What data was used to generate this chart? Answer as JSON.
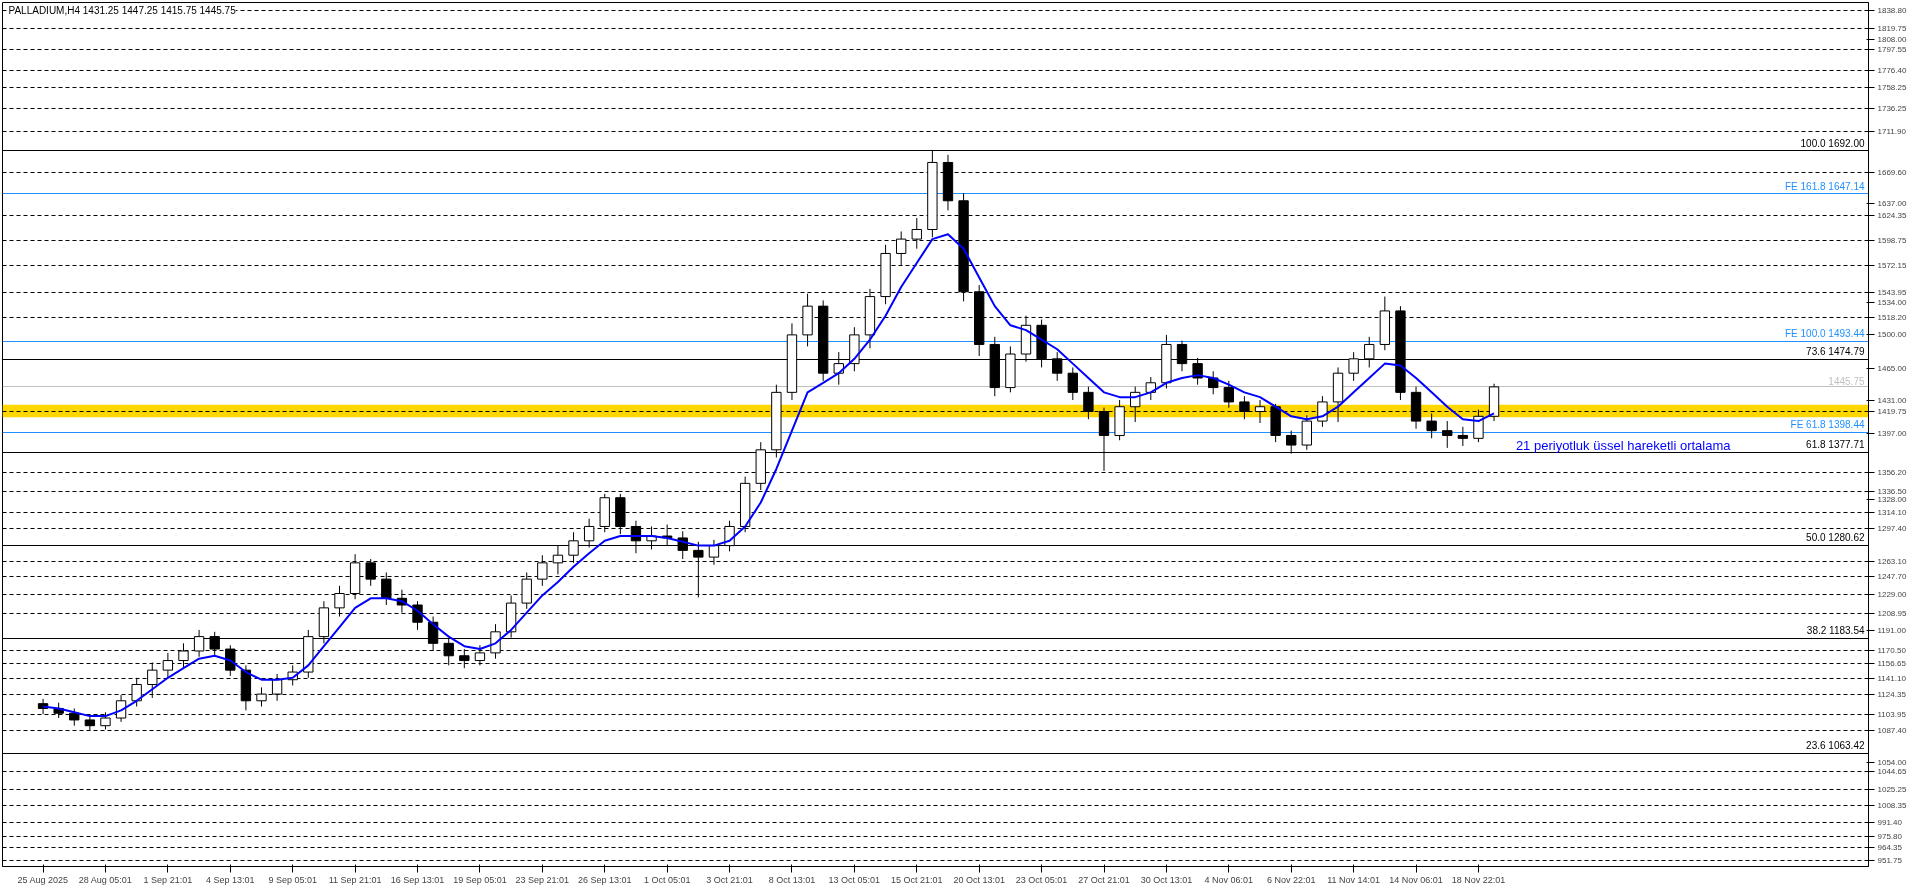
{
  "chart_data": {
    "type": "candlestick",
    "title": "PALLADIUM,H4 1431.25 1447.25 1415.75 1445.75",
    "categories": [
      "25 Aug 2025",
      null,
      null,
      null,
      "28 Aug 05:01",
      null,
      null,
      null,
      "1 Sep 21:01",
      null,
      null,
      null,
      "4 Sep 13:01",
      null,
      null,
      null,
      "9 Sep 05:01",
      null,
      null,
      null,
      "11 Sep 21:01",
      null,
      null,
      null,
      "16 Sep 13:01",
      null,
      null,
      null,
      "19 Sep 05:01",
      null,
      null,
      null,
      "23 Sep 21:01",
      null,
      null,
      null,
      "26 Sep 13:01",
      null,
      null,
      null,
      "1 Oct 05:01",
      null,
      null,
      null,
      "3 Oct 21:01",
      null,
      null,
      null,
      "8 Oct 13:01",
      null,
      null,
      null,
      "13 Oct 05:01",
      null,
      null,
      null,
      "15 Oct 21:01",
      null,
      null,
      null,
      "20 Oct 13:01",
      null,
      null,
      null,
      "23 Oct 05:01",
      null,
      null,
      null,
      "27 Oct 21:01",
      null,
      null,
      null,
      "30 Oct 13:01",
      null,
      null,
      null,
      "4 Nov 06:01",
      null,
      null,
      null,
      "6 Nov 22:01",
      null,
      null,
      null,
      "11 Nov 14:01",
      null,
      null,
      null,
      "14 Nov 06:01",
      null,
      null,
      null,
      "18 Nov 22:01",
      null
    ],
    "color": "#000000",
    "ohlc": [
      [
        1115,
        1120,
        1104,
        1110
      ],
      [
        1110,
        1116,
        1100,
        1105
      ],
      [
        1105,
        1110,
        1092,
        1098
      ],
      [
        1098,
        1102,
        1087,
        1092
      ],
      [
        1092,
        1106,
        1088,
        1100
      ],
      [
        1100,
        1124,
        1096,
        1118
      ],
      [
        1118,
        1142,
        1112,
        1135
      ],
      [
        1135,
        1158,
        1121,
        1150
      ],
      [
        1150,
        1168,
        1142,
        1160
      ],
      [
        1160,
        1178,
        1152,
        1170
      ],
      [
        1170,
        1192,
        1164,
        1185
      ],
      [
        1185,
        1190,
        1165,
        1172
      ],
      [
        1172,
        1176,
        1144,
        1150
      ],
      [
        1150,
        1155,
        1108,
        1118
      ],
      [
        1118,
        1132,
        1112,
        1125
      ],
      [
        1125,
        1146,
        1118,
        1140
      ],
      [
        1140,
        1155,
        1134,
        1148
      ],
      [
        1148,
        1192,
        1142,
        1185
      ],
      [
        1185,
        1222,
        1178,
        1215
      ],
      [
        1215,
        1238,
        1206,
        1230
      ],
      [
        1230,
        1271,
        1224,
        1262
      ],
      [
        1262,
        1266,
        1238,
        1245
      ],
      [
        1245,
        1252,
        1218,
        1225
      ],
      [
        1225,
        1234,
        1210,
        1218
      ],
      [
        1218,
        1222,
        1192,
        1200
      ],
      [
        1200,
        1206,
        1170,
        1178
      ],
      [
        1178,
        1184,
        1155,
        1165
      ],
      [
        1165,
        1172,
        1152,
        1160
      ],
      [
        1160,
        1176,
        1155,
        1168
      ],
      [
        1168,
        1198,
        1162,
        1190
      ],
      [
        1190,
        1228,
        1184,
        1220
      ],
      [
        1220,
        1252,
        1214,
        1245
      ],
      [
        1245,
        1270,
        1238,
        1262
      ],
      [
        1262,
        1280,
        1250,
        1270
      ],
      [
        1270,
        1294,
        1262,
        1285
      ],
      [
        1285,
        1308,
        1278,
        1300
      ],
      [
        1300,
        1334,
        1294,
        1330
      ],
      [
        1330,
        1334,
        1292,
        1300
      ],
      [
        1300,
        1306,
        1272,
        1285
      ],
      [
        1285,
        1300,
        1276,
        1290
      ],
      [
        1290,
        1302,
        1280,
        1288
      ],
      [
        1288,
        1295,
        1266,
        1275
      ],
      [
        1275,
        1284,
        1226,
        1268
      ],
      [
        1268,
        1286,
        1260,
        1280
      ],
      [
        1280,
        1306,
        1274,
        1300
      ],
      [
        1300,
        1352,
        1294,
        1345
      ],
      [
        1345,
        1388,
        1338,
        1380
      ],
      [
        1380,
        1448,
        1372,
        1440
      ],
      [
        1440,
        1512,
        1432,
        1500
      ],
      [
        1500,
        1543,
        1488,
        1530
      ],
      [
        1530,
        1536,
        1452,
        1460
      ],
      [
        1460,
        1482,
        1448,
        1470
      ],
      [
        1470,
        1508,
        1462,
        1500
      ],
      [
        1500,
        1548,
        1486,
        1540
      ],
      [
        1540,
        1594,
        1532,
        1585
      ],
      [
        1585,
        1608,
        1572,
        1600
      ],
      [
        1600,
        1622,
        1590,
        1610
      ],
      [
        1610,
        1692,
        1602,
        1680
      ],
      [
        1680,
        1688,
        1630,
        1640
      ],
      [
        1640,
        1648,
        1535,
        1545
      ],
      [
        1545,
        1552,
        1478,
        1490
      ],
      [
        1490,
        1498,
        1436,
        1445
      ],
      [
        1445,
        1488,
        1440,
        1480
      ],
      [
        1480,
        1520,
        1472,
        1510
      ],
      [
        1510,
        1516,
        1466,
        1475
      ],
      [
        1475,
        1482,
        1452,
        1460
      ],
      [
        1460,
        1466,
        1432,
        1440
      ],
      [
        1440,
        1446,
        1412,
        1420
      ],
      [
        1420,
        1424,
        1358,
        1395
      ],
      [
        1395,
        1432,
        1390,
        1425
      ],
      [
        1425,
        1446,
        1409,
        1440
      ],
      [
        1440,
        1456,
        1432,
        1450
      ],
      [
        1450,
        1500,
        1444,
        1490
      ],
      [
        1490,
        1494,
        1462,
        1470
      ],
      [
        1470,
        1476,
        1448,
        1455
      ],
      [
        1455,
        1462,
        1438,
        1445
      ],
      [
        1445,
        1452,
        1424,
        1430
      ],
      [
        1430,
        1436,
        1412,
        1420
      ],
      [
        1420,
        1432,
        1408,
        1425
      ],
      [
        1425,
        1428,
        1388,
        1395
      ],
      [
        1395,
        1400,
        1376,
        1385
      ],
      [
        1385,
        1416,
        1380,
        1410
      ],
      [
        1410,
        1436,
        1404,
        1430
      ],
      [
        1430,
        1466,
        1409,
        1460
      ],
      [
        1460,
        1482,
        1452,
        1475
      ],
      [
        1475,
        1498,
        1466,
        1490
      ],
      [
        1490,
        1540,
        1484,
        1525
      ],
      [
        1525,
        1530,
        1432,
        1440
      ],
      [
        1440,
        1446,
        1402,
        1410
      ],
      [
        1410,
        1418,
        1392,
        1400
      ],
      [
        1400,
        1410,
        1382,
        1395
      ],
      [
        1395,
        1404,
        1384,
        1392
      ],
      [
        1392,
        1422,
        1388,
        1415
      ],
      [
        1415,
        1449,
        1410,
        1445.75
      ]
    ],
    "series": [
      {
        "type": "line",
        "name": "21 periyotluk üssel hareketli ortalama",
        "color": "#0000ff",
        "values": [
          1112,
          1110,
          1106,
          1102,
          1102,
          1108,
          1118,
          1130,
          1142,
          1152,
          1162,
          1165,
          1160,
          1148,
          1140,
          1140,
          1142,
          1155,
          1175,
          1195,
          1215,
          1225,
          1225,
          1222,
          1212,
          1198,
          1185,
          1175,
          1172,
          1178,
          1192,
          1210,
          1228,
          1242,
          1258,
          1272,
          1285,
          1290,
          1290,
          1290,
          1288,
          1284,
          1280,
          1280,
          1285,
          1300,
          1325,
          1360,
          1400,
          1440,
          1450,
          1460,
          1475,
          1495,
          1520,
          1550,
          1575,
          1600,
          1605,
          1590,
          1560,
          1530,
          1510,
          1505,
          1495,
          1485,
          1470,
          1455,
          1440,
          1435,
          1435,
          1440,
          1450,
          1455,
          1458,
          1455,
          1448,
          1440,
          1435,
          1425,
          1415,
          1412,
          1415,
          1425,
          1440,
          1455,
          1470,
          1468,
          1455,
          1440,
          1425,
          1412,
          1410,
          1418
        ]
      }
    ],
    "ylim": [
      945,
      1847
    ],
    "yticks": [
      {
        "value": 1808,
        "label": "1808.00"
      },
      {
        "value": 1637,
        "label": "1637.00"
      },
      {
        "value": 1534,
        "label": "1534.00"
      },
      {
        "value": 1500,
        "label": "1500.00"
      },
      {
        "value": 1465,
        "label": "1465.00"
      },
      {
        "value": 1431,
        "label": "1431.00"
      },
      {
        "value": 1397,
        "label": "1397.00"
      },
      {
        "value": 1328,
        "label": "1328.00"
      },
      {
        "value": 1191,
        "label": "1191.00"
      },
      {
        "value": 1054,
        "label": "1054.00"
      }
    ],
    "bands": [
      {
        "axis": "y",
        "from": 1414,
        "to": 1427,
        "color": "#ffd700"
      }
    ],
    "ref_lines": [
      {
        "axis": "y",
        "value": 1838.8,
        "label": "1838.80",
        "color": "#000000",
        "line_style": "dashed"
      },
      {
        "axis": "y",
        "value": 1819.75,
        "label": "1819.75",
        "color": "#000000",
        "line_style": "dashed"
      },
      {
        "axis": "y",
        "value": 1797.55,
        "label": "1797.55",
        "color": "#000000",
        "line_style": "dashed"
      },
      {
        "axis": "y",
        "value": 1776.4,
        "label": "1776.40",
        "color": "#000000",
        "line_style": "dashed"
      },
      {
        "axis": "y",
        "value": 1758.25,
        "label": "1758.25",
        "color": "#000000",
        "line_style": "dashed"
      },
      {
        "axis": "y",
        "value": 1736.25,
        "label": "1736.25",
        "color": "#000000",
        "line_style": "dashed"
      },
      {
        "axis": "y",
        "value": 1711.9,
        "label": "1711.90",
        "color": "#000000",
        "line_style": "dashed"
      },
      {
        "axis": "y",
        "value": 1669.6,
        "label": "1669.60",
        "color": "#000000",
        "line_style": "dashed"
      },
      {
        "axis": "y",
        "value": 1624.35,
        "label": "1624.35",
        "color": "#000000",
        "line_style": "dashed"
      },
      {
        "axis": "y",
        "value": 1598.75,
        "label": "1598.75",
        "color": "#000000",
        "line_style": "dashed"
      },
      {
        "axis": "y",
        "value": 1572.15,
        "label": "1572.15",
        "color": "#000000",
        "line_style": "dashed"
      },
      {
        "axis": "y",
        "value": 1543.95,
        "label": "1543.95",
        "color": "#000000",
        "line_style": "dashed"
      },
      {
        "axis": "y",
        "value": 1518.2,
        "label": "1518.20",
        "color": "#000000",
        "line_style": "dashed"
      },
      {
        "axis": "y",
        "value": 1419.75,
        "label": "1419.75",
        "color": "#000000",
        "line_style": "dashed"
      },
      {
        "axis": "y",
        "value": 1356.2,
        "label": "1356.20",
        "color": "#000000",
        "line_style": "dashed"
      },
      {
        "axis": "y",
        "value": 1336.5,
        "label": "1336.50",
        "color": "#000000",
        "line_style": "dashed"
      },
      {
        "axis": "y",
        "value": 1314.1,
        "label": "1314.10",
        "color": "#000000",
        "line_style": "dashed"
      },
      {
        "axis": "y",
        "value": 1297.4,
        "label": "1297.40",
        "color": "#000000",
        "line_style": "dashed"
      },
      {
        "axis": "y",
        "value": 1263.1,
        "label": "1263.10",
        "color": "#000000",
        "line_style": "dashed"
      },
      {
        "axis": "y",
        "value": 1247.7,
        "label": "1247.70",
        "color": "#000000",
        "line_style": "dashed"
      },
      {
        "axis": "y",
        "value": 1229.0,
        "label": "1229.00",
        "color": "#000000",
        "line_style": "dashed"
      },
      {
        "axis": "y",
        "value": 1208.95,
        "label": "1208.95",
        "color": "#000000",
        "line_style": "dashed"
      },
      {
        "axis": "y",
        "value": 1170.5,
        "label": "1170.50",
        "color": "#000000",
        "line_style": "dashed"
      },
      {
        "axis": "y",
        "value": 1156.65,
        "label": "1156.65",
        "color": "#000000",
        "line_style": "dashed"
      },
      {
        "axis": "y",
        "value": 1141.1,
        "label": "1141.10",
        "color": "#000000",
        "line_style": "dashed"
      },
      {
        "axis": "y",
        "value": 1124.35,
        "label": "1124.35",
        "color": "#000000",
        "line_style": "dashed"
      },
      {
        "axis": "y",
        "value": 1103.95,
        "label": "1103.95",
        "color": "#000000",
        "line_style": "dashed"
      },
      {
        "axis": "y",
        "value": 1087.4,
        "label": "1087.40",
        "color": "#000000",
        "line_style": "dashed"
      },
      {
        "axis": "y",
        "value": 1044.65,
        "label": "1044.65",
        "color": "#000000",
        "line_style": "dashed"
      },
      {
        "axis": "y",
        "value": 1025.25,
        "label": "1025.25",
        "color": "#000000",
        "line_style": "dashed"
      },
      {
        "axis": "y",
        "value": 1008.35,
        "label": "1008.35",
        "color": "#000000",
        "line_style": "dashed"
      },
      {
        "axis": "y",
        "value": 991.4,
        "label": "991.40",
        "color": "#000000",
        "line_style": "dashed"
      },
      {
        "axis": "y",
        "value": 975.8,
        "label": "975.80",
        "color": "#000000",
        "line_style": "dashed"
      },
      {
        "axis": "y",
        "value": 964.35,
        "label": "964.35",
        "color": "#000000",
        "line_style": "dashed"
      },
      {
        "axis": "y",
        "value": 951.75,
        "label": "951.75",
        "color": "#000000",
        "line_style": "dashed"
      },
      {
        "axis": "y",
        "value": 1445.75,
        "label": "1445.75",
        "color": "#c0c0c0",
        "line_style": "solid"
      },
      {
        "axis": "y",
        "value": 1692.0,
        "label": "100.0 1692.00",
        "color": "#000000",
        "line_style": "solid"
      },
      {
        "axis": "y",
        "value": 1474.79,
        "label": "73.6 1474.79",
        "color": "#000000",
        "line_style": "solid"
      },
      {
        "axis": "y",
        "value": 1377.71,
        "label": "61.8 1377.71",
        "color": "#000000",
        "line_style": "solid"
      },
      {
        "axis": "y",
        "value": 1280.62,
        "label": "50.0 1280.62",
        "color": "#000000",
        "line_style": "solid"
      },
      {
        "axis": "y",
        "value": 1183.54,
        "label": "38.2 1183.54",
        "color": "#000000",
        "line_style": "solid"
      },
      {
        "axis": "y",
        "value": 1063.42,
        "label": "23.6 1063.42",
        "color": "#000000",
        "line_style": "solid"
      },
      {
        "axis": "y",
        "value": 1647.14,
        "label": "FE 161.8 1647.14",
        "color": "#1e90ff",
        "line_style": "solid"
      },
      {
        "axis": "y",
        "value": 1493.44,
        "label": "FE 100.0 1493.44",
        "color": "#1e90ff",
        "line_style": "solid"
      },
      {
        "axis": "y",
        "value": 1398.44,
        "label": "FE 61.8 1398.44",
        "color": "#1e90ff",
        "line_style": "solid"
      }
    ]
  }
}
